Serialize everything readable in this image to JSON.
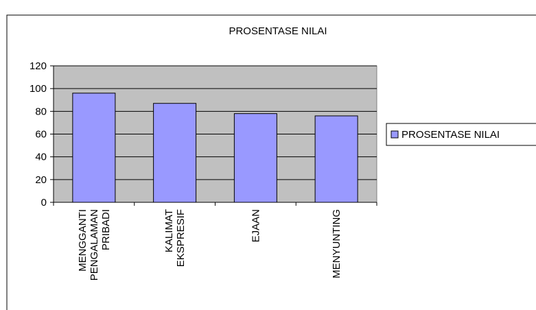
{
  "chart_data": {
    "type": "bar",
    "title": "PROSENTASE NILAI",
    "categories": [
      "MENGGANTI PENGALAMAN PRIBADI",
      "KALIMAT EKSPRESIF",
      "EJAAN",
      "MENYUNTING"
    ],
    "series": [
      {
        "name": "PROSENTASE NILAI",
        "color": "#9999ff",
        "values": [
          96,
          87,
          78,
          76
        ]
      }
    ],
    "ylim": [
      0,
      120
    ],
    "yticks": [
      0,
      20,
      40,
      60,
      80,
      100,
      120
    ],
    "grid": true,
    "legend": "right"
  }
}
